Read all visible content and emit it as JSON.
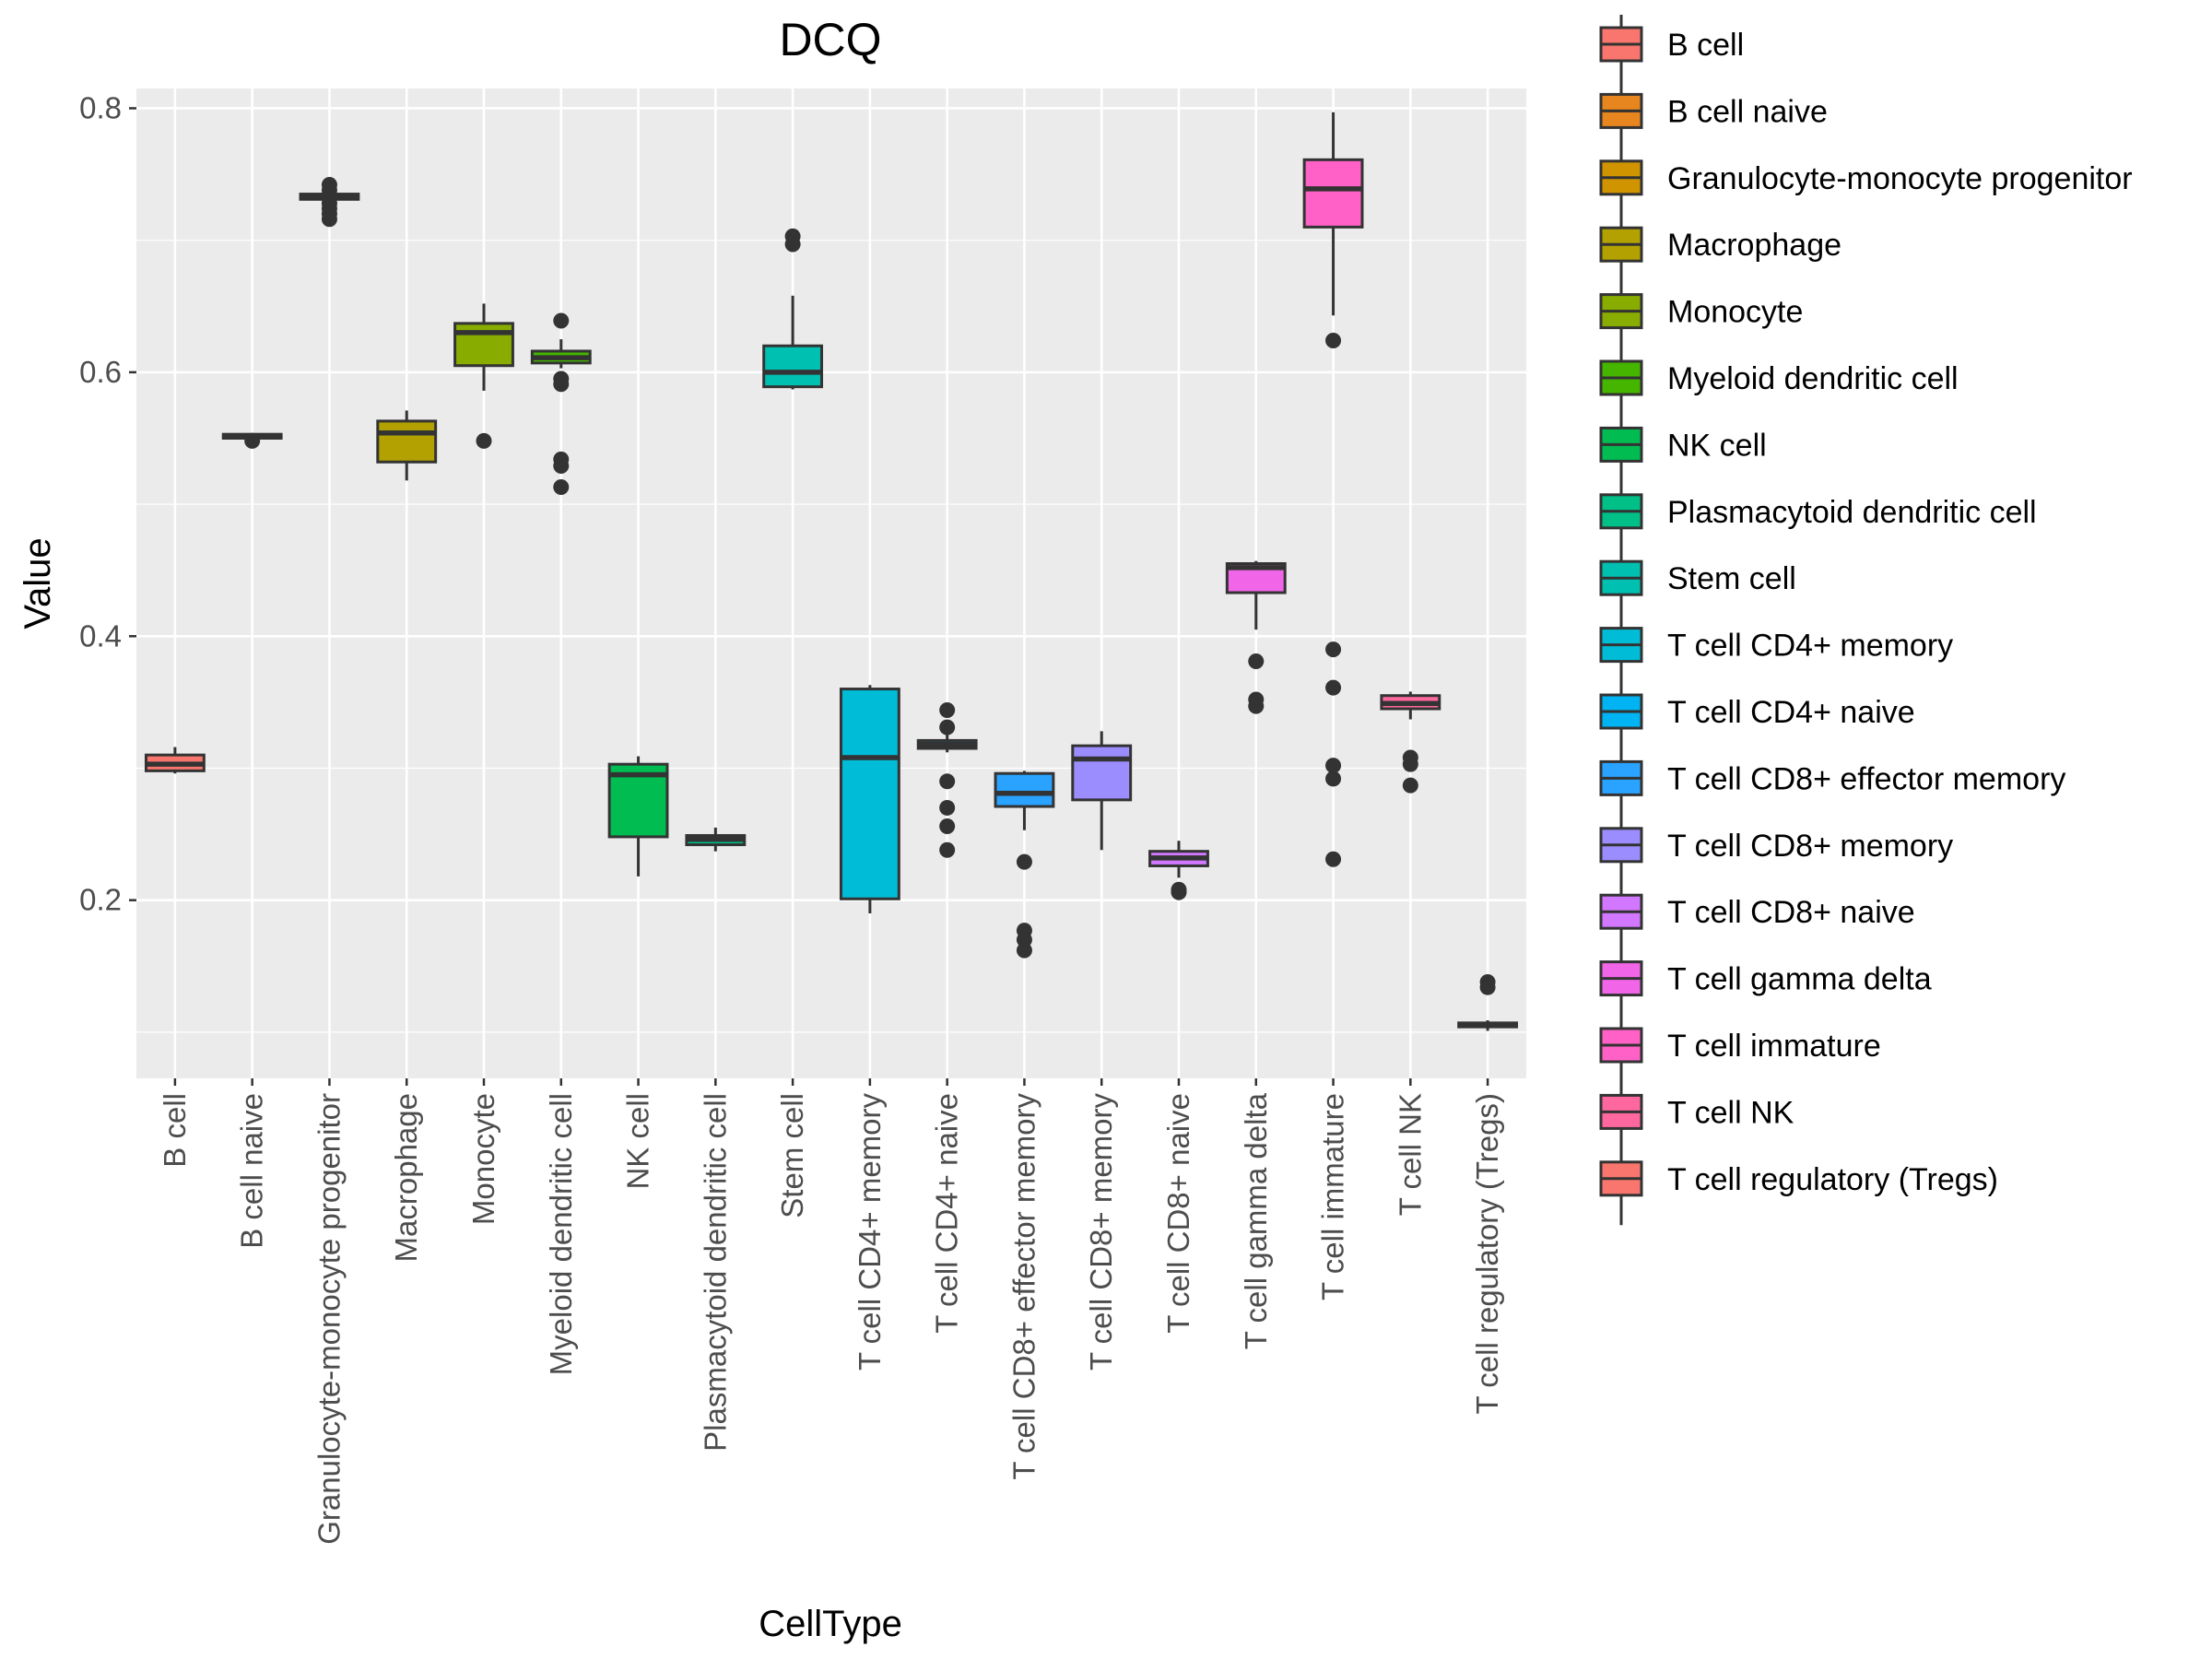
{
  "chart_data": {
    "type": "boxplot",
    "title": "DCQ",
    "xlabel": "CellType",
    "ylabel": "Value",
    "ylim": [
      0.065,
      0.815
    ],
    "y_ticks": [
      0.2,
      0.4,
      0.6,
      0.8
    ],
    "y_tick_labels": [
      "0.2",
      "0.4",
      "0.6",
      "0.8"
    ],
    "grid": true,
    "legend_position": "right",
    "categories": [
      "B cell",
      "B cell naive",
      "Granulocyte-monocyte progenitor",
      "Macrophage",
      "Monocyte",
      "Myeloid dendritic cell",
      "NK cell",
      "Plasmacytoid dendritic cell",
      "Stem cell",
      "T cell CD4+ memory",
      "T cell CD4+ naive",
      "T cell CD8+ effector memory",
      "T cell CD8+ memory",
      "T cell CD8+ naive",
      "T cell gamma delta",
      "T cell immature",
      "T cell NK",
      "T cell regulatory (Tregs)"
    ],
    "colors": [
      "#F8766D",
      "#E7851E",
      "#D09400",
      "#B2A100",
      "#89AC00",
      "#45B500",
      "#00BC51",
      "#00C087",
      "#00C0B2",
      "#00BCD6",
      "#00B3F2",
      "#29A3FF",
      "#9C8DFF",
      "#D277FF",
      "#F166E8",
      "#FF61C7",
      "#FF689E",
      "#F8766D"
    ],
    "boxes": [
      {
        "min": 0.296,
        "q1": 0.298,
        "median": 0.303,
        "q3": 0.31,
        "max": 0.316,
        "outliers": []
      },
      {
        "min": 0.549,
        "q1": 0.55,
        "median": 0.551,
        "q3": 0.553,
        "max": 0.554,
        "outliers": [
          0.548
        ]
      },
      {
        "min": 0.729,
        "q1": 0.731,
        "median": 0.733,
        "q3": 0.735,
        "max": 0.737,
        "outliers": [
          0.742,
          0.738,
          0.728,
          0.724,
          0.72,
          0.716
        ]
      },
      {
        "min": 0.518,
        "q1": 0.532,
        "median": 0.554,
        "q3": 0.563,
        "max": 0.571,
        "outliers": []
      },
      {
        "min": 0.586,
        "q1": 0.605,
        "median": 0.63,
        "q3": 0.637,
        "max": 0.652,
        "outliers": [
          0.548
        ]
      },
      {
        "min": 0.603,
        "q1": 0.607,
        "median": 0.611,
        "q3": 0.616,
        "max": 0.625,
        "outliers": [
          0.639,
          0.595,
          0.591,
          0.534,
          0.529,
          0.513
        ]
      },
      {
        "min": 0.218,
        "q1": 0.248,
        "median": 0.295,
        "q3": 0.303,
        "max": 0.309,
        "outliers": []
      },
      {
        "min": 0.237,
        "q1": 0.242,
        "median": 0.246,
        "q3": 0.249,
        "max": 0.255,
        "outliers": []
      },
      {
        "min": 0.587,
        "q1": 0.589,
        "median": 0.6,
        "q3": 0.62,
        "max": 0.658,
        "outliers": [
          0.703,
          0.697
        ]
      },
      {
        "min": 0.19,
        "q1": 0.201,
        "median": 0.308,
        "q3": 0.36,
        "max": 0.363,
        "outliers": []
      },
      {
        "min": 0.312,
        "q1": 0.315,
        "median": 0.318,
        "q3": 0.321,
        "max": 0.326,
        "outliers": [
          0.344,
          0.331,
          0.29,
          0.27,
          0.256,
          0.238
        ]
      },
      {
        "min": 0.253,
        "q1": 0.271,
        "median": 0.281,
        "q3": 0.296,
        "max": 0.298,
        "outliers": [
          0.229,
          0.177,
          0.17,
          0.162
        ]
      },
      {
        "min": 0.238,
        "q1": 0.276,
        "median": 0.307,
        "q3": 0.317,
        "max": 0.328,
        "outliers": []
      },
      {
        "min": 0.217,
        "q1": 0.226,
        "median": 0.232,
        "q3": 0.237,
        "max": 0.245,
        "outliers": [
          0.208,
          0.206
        ]
      },
      {
        "min": 0.405,
        "q1": 0.433,
        "median": 0.452,
        "q3": 0.455,
        "max": 0.457,
        "outliers": [
          0.381,
          0.352,
          0.347
        ]
      },
      {
        "min": 0.643,
        "q1": 0.71,
        "median": 0.739,
        "q3": 0.761,
        "max": 0.797,
        "outliers": [
          0.624,
          0.39,
          0.361,
          0.302,
          0.292,
          0.231
        ]
      },
      {
        "min": 0.337,
        "q1": 0.345,
        "median": 0.349,
        "q3": 0.355,
        "max": 0.358,
        "outliers": [
          0.308,
          0.303,
          0.287
        ]
      },
      {
        "min": 0.101,
        "q1": 0.104,
        "median": 0.105,
        "q3": 0.107,
        "max": 0.109,
        "outliers": [
          0.138,
          0.134
        ]
      }
    ]
  }
}
